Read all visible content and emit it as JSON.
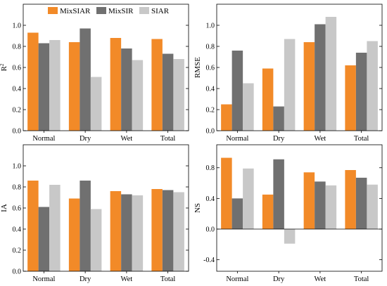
{
  "legend": [
    {
      "label": "MixSIAR",
      "color": "#F28A28"
    },
    {
      "label": "MixSIR",
      "color": "#707070"
    },
    {
      "label": "SIAR",
      "color": "#C8C8C8"
    }
  ],
  "chart_data": [
    {
      "type": "bar",
      "categories": [
        "Normal",
        "Dry",
        "Wet",
        "Total"
      ],
      "ylabel": "R",
      "ylabel_sup": "2",
      "ylim": [
        0,
        1.2
      ],
      "yticks": [
        0.0,
        0.2,
        0.4,
        0.6,
        0.8,
        1.0
      ],
      "ytick_labels": [
        "0.0",
        "0.2",
        "0.4",
        "0.6",
        "0.8",
        "1.0"
      ],
      "series": [
        {
          "name": "MixSIAR",
          "values": [
            0.93,
            0.84,
            0.88,
            0.87
          ]
        },
        {
          "name": "MixSIR",
          "values": [
            0.83,
            0.97,
            0.78,
            0.73
          ]
        },
        {
          "name": "SIAR",
          "values": [
            0.86,
            0.51,
            0.67,
            0.68
          ]
        }
      ]
    },
    {
      "type": "bar",
      "categories": [
        "Normal",
        "Dry",
        "Wet",
        "Total"
      ],
      "ylabel": "RMSE",
      "ylim": [
        0,
        1.2
      ],
      "yticks": [
        0.0,
        0.2,
        0.4,
        0.6,
        0.8,
        1.0
      ],
      "ytick_labels": [
        "0.0",
        "0.2",
        "0.4",
        "0.6",
        "0.8",
        "1.0"
      ],
      "series": [
        {
          "name": "MixSIAR",
          "values": [
            0.25,
            0.59,
            0.84,
            0.62
          ]
        },
        {
          "name": "MixSIR",
          "values": [
            0.76,
            0.23,
            1.01,
            0.74
          ]
        },
        {
          "name": "SIAR",
          "values": [
            0.45,
            0.87,
            1.08,
            0.85
          ]
        }
      ]
    },
    {
      "type": "bar",
      "categories": [
        "Normal",
        "Dry",
        "Wet",
        "Total"
      ],
      "ylabel": "IA",
      "ylim": [
        0,
        1.2
      ],
      "yticks": [
        0.0,
        0.2,
        0.4,
        0.6,
        0.8,
        1.0
      ],
      "ytick_labels": [
        "0.0",
        "0.2",
        "0.4",
        "0.6",
        "0.8",
        "1.0"
      ],
      "series": [
        {
          "name": "MixSIAR",
          "values": [
            0.86,
            0.69,
            0.76,
            0.78
          ]
        },
        {
          "name": "MixSIR",
          "values": [
            0.61,
            0.86,
            0.73,
            0.77
          ]
        },
        {
          "name": "SIAR",
          "values": [
            0.82,
            0.59,
            0.72,
            0.75
          ]
        }
      ]
    },
    {
      "type": "bar",
      "categories": [
        "Normal",
        "Dry",
        "Wet",
        "Total"
      ],
      "ylabel": "NS",
      "ylim": [
        -0.55,
        1.1
      ],
      "yticks": [
        -0.4,
        0.0,
        0.4,
        0.8
      ],
      "ytick_labels": [
        "-0.4",
        "0.0",
        "0.4",
        "0.8"
      ],
      "series": [
        {
          "name": "MixSIAR",
          "values": [
            0.93,
            0.45,
            0.74,
            0.77
          ]
        },
        {
          "name": "MixSIR",
          "values": [
            0.4,
            0.91,
            0.62,
            0.67
          ]
        },
        {
          "name": "SIAR",
          "values": [
            0.79,
            -0.19,
            0.57,
            0.58
          ]
        }
      ]
    }
  ]
}
